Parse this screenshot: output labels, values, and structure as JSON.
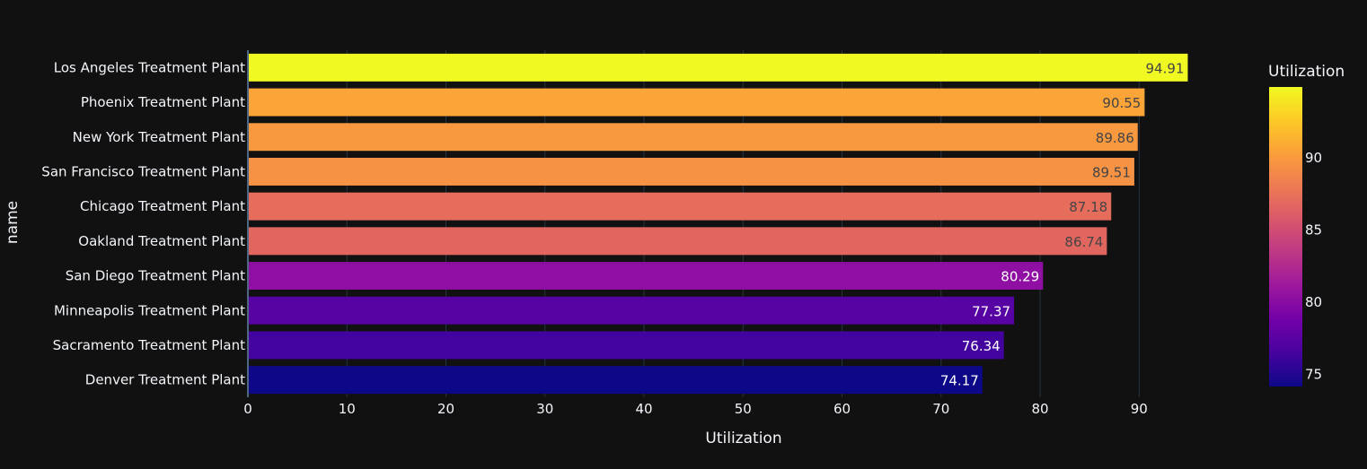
{
  "chart_data": {
    "type": "bar",
    "orientation": "horizontal",
    "title": "",
    "xlabel": "Utilization",
    "ylabel": "name",
    "xlim": [
      0,
      97.5
    ],
    "x_ticks": [
      0,
      10,
      20,
      30,
      40,
      50,
      60,
      70,
      80,
      90
    ],
    "grid": true,
    "categories": [
      "Los Angeles Treatment Plant",
      "Phoenix Treatment Plant",
      "New York Treatment Plant",
      "San Francisco Treatment Plant",
      "Chicago Treatment Plant",
      "Oakland Treatment Plant",
      "San Diego Treatment Plant",
      "Minneapolis Treatment Plant",
      "Sacramento Treatment Plant",
      "Denver Treatment Plant"
    ],
    "values": [
      94.91,
      90.55,
      89.86,
      89.51,
      87.18,
      86.74,
      80.29,
      77.37,
      76.34,
      74.17
    ],
    "value_labels": [
      "94.91",
      "90.55",
      "89.86",
      "89.51",
      "87.18",
      "86.74",
      "80.29",
      "77.37",
      "76.34",
      "74.17"
    ],
    "colorbar": {
      "title": "Utilization",
      "range": [
        74.17,
        94.91
      ],
      "ticks": [
        75,
        80,
        85,
        90
      ],
      "colorscale": "plasma"
    }
  },
  "colors": {
    "background": "#111111",
    "grid": "#283442",
    "text": "#f2f5fa"
  }
}
